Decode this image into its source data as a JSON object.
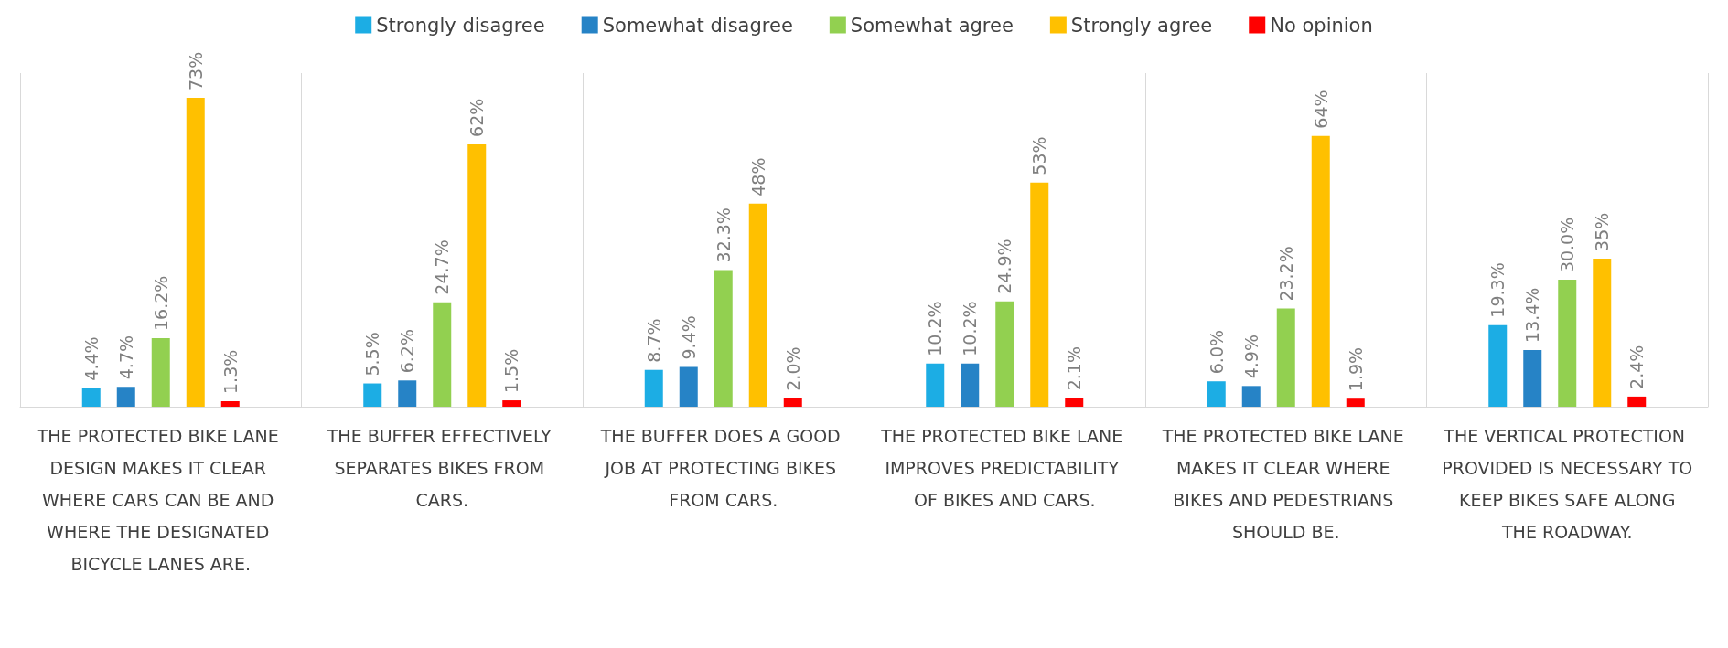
{
  "chart_data": {
    "type": "bar",
    "categories": [
      "THE PROTECTED BIKE LANE DESIGN MAKES IT CLEAR WHERE CARS CAN BE AND WHERE THE DESIGNATED BICYCLE LANES ARE.",
      "THE BUFFER EFFECTIVELY SEPARATES BIKES FROM CARS.",
      "THE BUFFER DOES A GOOD JOB AT PROTECTING BIKES FROM CARS.",
      "THE PROTECTED BIKE LANE IMPROVES PREDICTABILITY OF BIKES AND CARS.",
      "THE PROTECTED BIKE LANE MAKES IT CLEAR WHERE BIKES AND PEDESTRIANS SHOULD BE.",
      "THE VERTICAL PROTECTION PROVIDED IS NECESSARY TO KEEP BIKES SAFE ALONG THE ROADWAY."
    ],
    "series": [
      {
        "name": "Strongly disagree",
        "color": "#1cade4",
        "values": [
          4.4,
          5.5,
          8.7,
          10.2,
          6.0,
          19.3
        ],
        "value_labels": [
          "4.4%",
          "5.5%",
          "8.7%",
          "10.2%",
          "6.0%",
          "19.3%"
        ]
      },
      {
        "name": "Somewhat disagree",
        "color": "#2683c6",
        "values": [
          4.7,
          6.2,
          9.4,
          10.2,
          4.9,
          13.4
        ],
        "value_labels": [
          "4.7%",
          "6.2%",
          "9.4%",
          "10.2%",
          "4.9%",
          "13.4%"
        ]
      },
      {
        "name": "Somewhat agree",
        "color": "#92d050",
        "values": [
          16.2,
          24.7,
          32.3,
          24.9,
          23.2,
          30.0
        ],
        "value_labels": [
          "16.2%",
          "24.7%",
          "32.3%",
          "24.9%",
          "23.2%",
          "30.0%"
        ]
      },
      {
        "name": "Strongly agree",
        "color": "#ffc000",
        "values": [
          73,
          62,
          48,
          53,
          64,
          35
        ],
        "value_labels": [
          "73%",
          "62%",
          "48%",
          "53%",
          "64%",
          "35%"
        ]
      },
      {
        "name": "No opinion",
        "color": "#ff0000",
        "values": [
          1.3,
          1.5,
          2.0,
          2.1,
          1.9,
          2.4
        ],
        "value_labels": [
          "1.3%",
          "1.5%",
          "2.0%",
          "2.1%",
          "1.9%",
          "2.4%"
        ]
      }
    ],
    "legend": "top",
    "grid": "x"
  }
}
